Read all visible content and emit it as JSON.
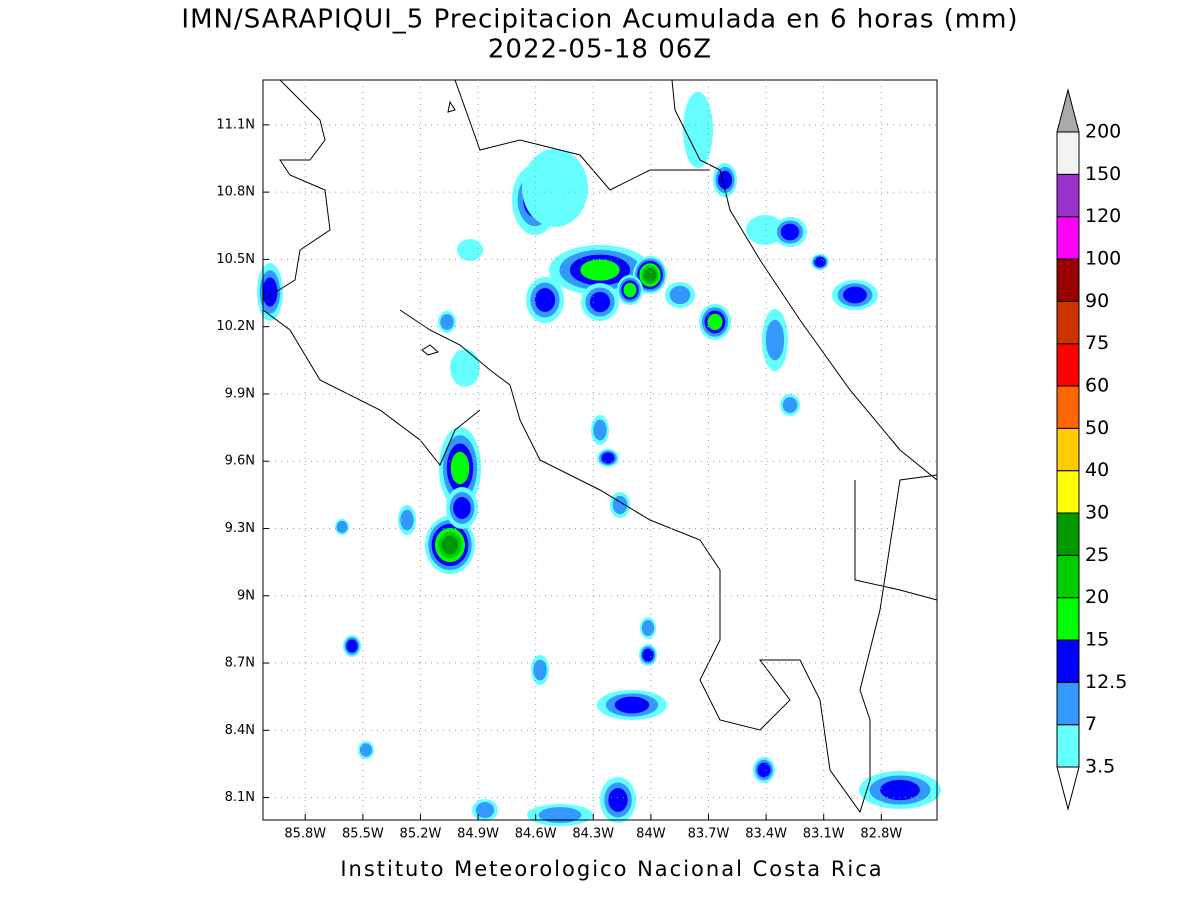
{
  "title": "IMN/SARAPIQUI_5 Precipitacion Acumulada en 6 horas (mm)",
  "subtitle": "2022-05-18 06Z",
  "footer": "Instituto Meteorologico Nacional Costa Rica",
  "map": {
    "lonlim": [
      -86.02,
      -82.51
    ],
    "latlim": [
      8.0,
      11.3
    ],
    "lon_ticks": [
      {
        "value": -85.8,
        "label": "85.8W"
      },
      {
        "value": -85.5,
        "label": "85.5W"
      },
      {
        "value": -85.2,
        "label": "85.2W"
      },
      {
        "value": -84.9,
        "label": "84.9W"
      },
      {
        "value": -84.6,
        "label": "84.6W"
      },
      {
        "value": -84.3,
        "label": "84.3W"
      },
      {
        "value": -84.0,
        "label": "84W"
      },
      {
        "value": -83.7,
        "label": "83.7W"
      },
      {
        "value": -83.4,
        "label": "83.4W"
      },
      {
        "value": -83.1,
        "label": "83.1W"
      },
      {
        "value": -82.8,
        "label": "82.8W"
      }
    ],
    "lat_ticks": [
      {
        "value": 11.1,
        "label": "11.1N"
      },
      {
        "value": 10.8,
        "label": "10.8N"
      },
      {
        "value": 10.5,
        "label": "10.5N"
      },
      {
        "value": 10.2,
        "label": "10.2N"
      },
      {
        "value": 9.9,
        "label": "9.9N"
      },
      {
        "value": 9.6,
        "label": "9.6N"
      },
      {
        "value": 9.3,
        "label": "9.3N"
      },
      {
        "value": 9.0,
        "label": "9N"
      },
      {
        "value": 8.7,
        "label": "8.7N"
      },
      {
        "value": 8.4,
        "label": "8.4N"
      },
      {
        "value": 8.1,
        "label": "8.1N"
      }
    ]
  },
  "colorbar": {
    "levels": [
      3.5,
      7,
      12.5,
      15,
      20,
      25,
      30,
      40,
      50,
      60,
      75,
      90,
      100,
      120,
      150,
      200
    ],
    "colors": [
      "#66ffff",
      "#3399ff",
      "#0000ff",
      "#00ff00",
      "#00cc00",
      "#009900",
      "#ffff00",
      "#ffcc00",
      "#ff6600",
      "#ff0000",
      "#cc3300",
      "#990000",
      "#ff00ff",
      "#9933cc",
      "#f2f2f2"
    ],
    "over_color": "#aaaaaa",
    "under_color": "#ffffff"
  }
}
